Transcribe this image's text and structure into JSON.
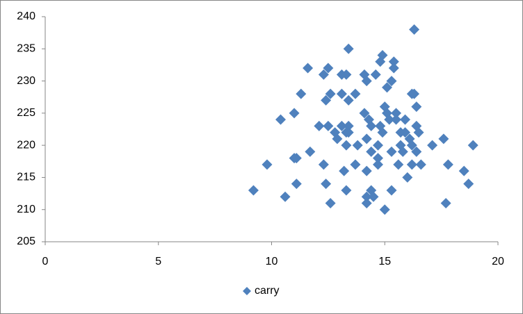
{
  "chart_data": {
    "type": "scatter",
    "series": [
      {
        "name": "carry",
        "color": "#4f81bd",
        "x": [
          9.2,
          9.8,
          10.4,
          10.6,
          11.0,
          11.0,
          11.1,
          11.1,
          11.3,
          11.6,
          11.7,
          12.1,
          12.3,
          12.3,
          12.4,
          12.4,
          12.5,
          12.5,
          12.6,
          12.6,
          12.8,
          12.9,
          13.1,
          13.1,
          13.1,
          13.2,
          13.3,
          13.3,
          13.3,
          13.3,
          13.4,
          13.4,
          13.4,
          13.4,
          13.7,
          13.7,
          13.8,
          14.1,
          14.1,
          14.2,
          14.2,
          14.2,
          14.2,
          14.2,
          14.3,
          14.4,
          14.4,
          14.4,
          14.5,
          14.6,
          14.7,
          14.7,
          14.7,
          14.8,
          14.8,
          14.9,
          14.9,
          15.0,
          15.0,
          15.1,
          15.1,
          15.2,
          15.3,
          15.3,
          15.3,
          15.4,
          15.4,
          15.5,
          15.5,
          15.6,
          15.7,
          15.7,
          15.8,
          15.9,
          15.9,
          16.0,
          16.1,
          16.2,
          16.2,
          16.2,
          16.3,
          16.3,
          16.4,
          16.4,
          16.4,
          16.5,
          16.6,
          17.1,
          17.6,
          17.7,
          17.8,
          18.5,
          18.7,
          18.9
        ],
        "values": [
          213,
          217,
          224,
          212,
          225,
          218,
          214,
          218,
          228,
          232,
          219,
          223,
          231,
          217,
          214,
          227,
          232,
          223,
          211,
          228,
          222,
          221,
          231,
          228,
          223,
          216,
          222,
          213,
          220,
          231,
          227,
          235,
          223,
          222,
          217,
          228,
          220,
          231,
          225,
          221,
          212,
          211,
          230,
          216,
          224,
          213,
          223,
          219,
          212,
          231,
          217,
          218,
          220,
          233,
          223,
          222,
          234,
          210,
          226,
          225,
          229,
          224,
          230,
          213,
          219,
          233,
          232,
          224,
          225,
          217,
          222,
          220,
          219,
          224,
          222,
          215,
          221,
          228,
          220,
          217,
          228,
          238,
          223,
          226,
          219,
          222,
          217,
          220,
          221,
          211,
          217,
          216,
          214,
          220
        ]
      }
    ],
    "xlim": [
      0,
      20
    ],
    "xticks": [
      0,
      5,
      10,
      15,
      20
    ],
    "ylim": [
      205,
      240
    ],
    "yticks": [
      205,
      210,
      215,
      220,
      225,
      230,
      235,
      240
    ],
    "grid": false,
    "legend": "bottom"
  }
}
